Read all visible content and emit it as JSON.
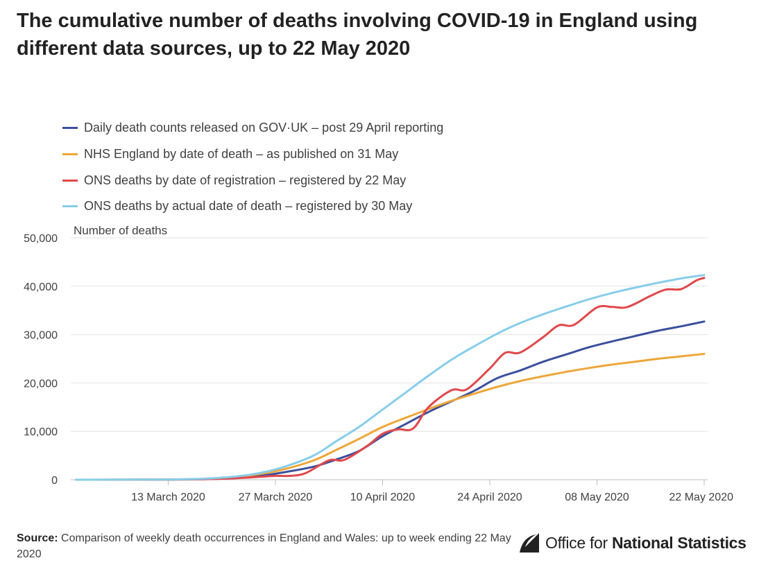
{
  "title": "The cumulative number of deaths involving COVID-19 in England using different data sources, up to 22 May 2020",
  "source": {
    "label": "Source:",
    "text": "Comparison of weekly death occurrences in England and Wales: up to week ending 22 May 2020"
  },
  "logo": {
    "text_light": "Office for",
    "text_bold": "National Statistics",
    "icon": "ons-logo-icon"
  },
  "colors": {
    "govuk": "#3a4f9c",
    "nhs": "#eea638",
    "ons_reg": "#e0484b",
    "ons_actual": "#87cdea",
    "grid": "#e2e2e2",
    "axis": "#bdbdbd"
  },
  "chart_data": {
    "type": "line",
    "ylabel": "Number of deaths",
    "ylim": [
      0,
      50000
    ],
    "yticks": [
      0,
      10000,
      20000,
      30000,
      40000,
      50000
    ],
    "ytick_labels": [
      "0",
      "10,000",
      "20,000",
      "30,000",
      "40,000",
      "50,000"
    ],
    "xlim": [
      "2020-03-01",
      "2020-05-22"
    ],
    "xticks": [
      "2020-03-13",
      "2020-03-27",
      "2020-04-10",
      "2020-04-24",
      "2020-05-08",
      "2020-05-22"
    ],
    "xtick_labels": [
      "13 March 2020",
      "27 March 2020",
      "10 April 2020",
      "24 April 2020",
      "08 May 2020",
      "22 May 2020"
    ],
    "grid": true,
    "legend_position": "top-left",
    "series": [
      {
        "name": "Daily death counts released on GOV·UK – post 29 April reporting",
        "color": "#3a4f9c",
        "points": [
          [
            "2020-03-01",
            0
          ],
          [
            "2020-03-13",
            50
          ],
          [
            "2020-03-18",
            150
          ],
          [
            "2020-03-22",
            400
          ],
          [
            "2020-03-25",
            800
          ],
          [
            "2020-03-28",
            1500
          ],
          [
            "2020-04-01",
            2700
          ],
          [
            "2020-04-04",
            4200
          ],
          [
            "2020-04-07",
            6000
          ],
          [
            "2020-04-10",
            9000
          ],
          [
            "2020-04-13",
            11500
          ],
          [
            "2020-04-16",
            14000
          ],
          [
            "2020-04-19",
            16200
          ],
          [
            "2020-04-22",
            18400
          ],
          [
            "2020-04-25",
            21000
          ],
          [
            "2020-04-28",
            22600
          ],
          [
            "2020-05-01",
            24400
          ],
          [
            "2020-05-04",
            25900
          ],
          [
            "2020-05-07",
            27400
          ],
          [
            "2020-05-10",
            28600
          ],
          [
            "2020-05-13",
            29700
          ],
          [
            "2020-05-16",
            30800
          ],
          [
            "2020-05-19",
            31700
          ],
          [
            "2020-05-22",
            32700
          ]
        ]
      },
      {
        "name": "NHS England by date of death – as published on 31 May",
        "color": "#eea638",
        "points": [
          [
            "2020-03-01",
            0
          ],
          [
            "2020-03-13",
            50
          ],
          [
            "2020-03-18",
            200
          ],
          [
            "2020-03-22",
            600
          ],
          [
            "2020-03-25",
            1200
          ],
          [
            "2020-03-28",
            2100
          ],
          [
            "2020-04-01",
            4000
          ],
          [
            "2020-04-04",
            6200
          ],
          [
            "2020-04-07",
            8500
          ],
          [
            "2020-04-10",
            10900
          ],
          [
            "2020-04-13",
            12800
          ],
          [
            "2020-04-16",
            14600
          ],
          [
            "2020-04-19",
            16300
          ],
          [
            "2020-04-22",
            17800
          ],
          [
            "2020-04-25",
            19200
          ],
          [
            "2020-04-28",
            20400
          ],
          [
            "2020-05-01",
            21400
          ],
          [
            "2020-05-04",
            22300
          ],
          [
            "2020-05-07",
            23100
          ],
          [
            "2020-05-10",
            23800
          ],
          [
            "2020-05-13",
            24400
          ],
          [
            "2020-05-16",
            25000
          ],
          [
            "2020-05-19",
            25500
          ],
          [
            "2020-05-22",
            26000
          ]
        ]
      },
      {
        "name": "ONS deaths by date of registration – registered by 22 May",
        "color": "#e0484b",
        "points": [
          [
            "2020-03-01",
            0
          ],
          [
            "2020-03-13",
            20
          ],
          [
            "2020-03-20",
            200
          ],
          [
            "2020-03-24",
            500
          ],
          [
            "2020-03-27",
            800
          ],
          [
            "2020-03-29",
            800
          ],
          [
            "2020-03-31",
            1400
          ],
          [
            "2020-04-03",
            4000
          ],
          [
            "2020-04-05",
            4100
          ],
          [
            "2020-04-08",
            7000
          ],
          [
            "2020-04-10",
            9500
          ],
          [
            "2020-04-12",
            10400
          ],
          [
            "2020-04-14",
            10600
          ],
          [
            "2020-04-16",
            15000
          ],
          [
            "2020-04-19",
            18500
          ],
          [
            "2020-04-21",
            18700
          ],
          [
            "2020-04-24",
            23000
          ],
          [
            "2020-04-26",
            26200
          ],
          [
            "2020-04-28",
            26300
          ],
          [
            "2020-05-01",
            29500
          ],
          [
            "2020-05-03",
            31900
          ],
          [
            "2020-05-05",
            32000
          ],
          [
            "2020-05-08",
            35600
          ],
          [
            "2020-05-10",
            35700
          ],
          [
            "2020-05-12",
            35700
          ],
          [
            "2020-05-15",
            38000
          ],
          [
            "2020-05-17",
            39300
          ],
          [
            "2020-05-19",
            39400
          ],
          [
            "2020-05-21",
            41200
          ],
          [
            "2020-05-22",
            41700
          ]
        ]
      },
      {
        "name": "ONS deaths by actual date of death – registered by 30 May",
        "color": "#87cdea",
        "points": [
          [
            "2020-03-01",
            0
          ],
          [
            "2020-03-13",
            50
          ],
          [
            "2020-03-18",
            250
          ],
          [
            "2020-03-22",
            700
          ],
          [
            "2020-03-25",
            1400
          ],
          [
            "2020-03-28",
            2600
          ],
          [
            "2020-04-01",
            5000
          ],
          [
            "2020-04-04",
            8000
          ],
          [
            "2020-04-07",
            11000
          ],
          [
            "2020-04-10",
            14500
          ],
          [
            "2020-04-13",
            18000
          ],
          [
            "2020-04-16",
            21500
          ],
          [
            "2020-04-19",
            24800
          ],
          [
            "2020-04-22",
            27600
          ],
          [
            "2020-04-25",
            30200
          ],
          [
            "2020-04-28",
            32400
          ],
          [
            "2020-05-01",
            34200
          ],
          [
            "2020-05-04",
            35800
          ],
          [
            "2020-05-07",
            37300
          ],
          [
            "2020-05-10",
            38600
          ],
          [
            "2020-05-13",
            39700
          ],
          [
            "2020-05-16",
            40700
          ],
          [
            "2020-05-19",
            41600
          ],
          [
            "2020-05-22",
            42300
          ]
        ]
      }
    ]
  }
}
